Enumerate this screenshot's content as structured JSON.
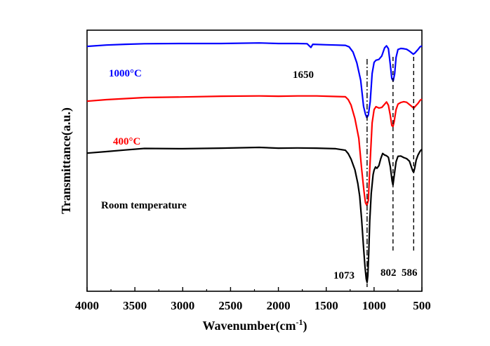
{
  "chart_data": {
    "type": "line",
    "title": "",
    "xlabel": "Wavenumber(cm",
    "xlabel_sup": "-1",
    "xlabel_close": ")",
    "ylabel": "Transmittance(a.u.)",
    "xlim": [
      4000,
      500
    ],
    "x_direction": "reversed",
    "x_ticks": [
      4000,
      3500,
      3000,
      2500,
      2000,
      1500,
      1000,
      500
    ],
    "x_tick_labels": [
      "4000",
      "3500",
      "3000",
      "2500",
      "2000",
      "1500",
      "1000",
      "500"
    ],
    "y_ticks_shown": false,
    "ylim": [
      0,
      100
    ],
    "series": [
      {
        "name": "1000°C",
        "color": "#0000ff",
        "points": [
          [
            4000,
            93.8
          ],
          [
            3800,
            94.3
          ],
          [
            3600,
            94.6
          ],
          [
            3400,
            94.8
          ],
          [
            3000,
            94.9
          ],
          [
            2600,
            94.9
          ],
          [
            2200,
            95.1
          ],
          [
            2000,
            94.9
          ],
          [
            1800,
            94.9
          ],
          [
            1700,
            94.8
          ],
          [
            1660,
            93.4
          ],
          [
            1640,
            94.6
          ],
          [
            1500,
            94.4
          ],
          [
            1400,
            94.3
          ],
          [
            1300,
            94.2
          ],
          [
            1260,
            93.6
          ],
          [
            1220,
            91.6
          ],
          [
            1180,
            87.5
          ],
          [
            1140,
            80.8
          ],
          [
            1110,
            70.8
          ],
          [
            1090,
            67.8
          ],
          [
            1075,
            66.5
          ],
          [
            1060,
            67.5
          ],
          [
            1040,
            72.7
          ],
          [
            1020,
            83.4
          ],
          [
            1000,
            87.7
          ],
          [
            980,
            88.5
          ],
          [
            950,
            88.8
          ],
          [
            920,
            90.1
          ],
          [
            890,
            93.2
          ],
          [
            870,
            94.0
          ],
          [
            850,
            92.9
          ],
          [
            830,
            86.8
          ],
          [
            815,
            81.5
          ],
          [
            800,
            80.6
          ],
          [
            785,
            83.3
          ],
          [
            770,
            89.6
          ],
          [
            750,
            92.6
          ],
          [
            720,
            93.0
          ],
          [
            690,
            92.9
          ],
          [
            660,
            92.7
          ],
          [
            630,
            92.0
          ],
          [
            600,
            91.1
          ],
          [
            590,
            90.8
          ],
          [
            575,
            91.2
          ],
          [
            560,
            91.8
          ],
          [
            540,
            92.6
          ],
          [
            520,
            93.6
          ],
          [
            500,
            94.0
          ]
        ]
      },
      {
        "name": "400°C",
        "color": "#ff0000",
        "points": [
          [
            4000,
            72.8
          ],
          [
            3800,
            73.4
          ],
          [
            3600,
            73.8
          ],
          [
            3400,
            74.2
          ],
          [
            3000,
            74.4
          ],
          [
            2600,
            74.7
          ],
          [
            2200,
            74.8
          ],
          [
            2000,
            74.7
          ],
          [
            1800,
            74.8
          ],
          [
            1600,
            74.8
          ],
          [
            1400,
            74.6
          ],
          [
            1300,
            74.5
          ],
          [
            1270,
            73.4
          ],
          [
            1240,
            71.3
          ],
          [
            1200,
            66.1
          ],
          [
            1160,
            58.6
          ],
          [
            1130,
            47.0
          ],
          [
            1105,
            38.3
          ],
          [
            1090,
            33.9
          ],
          [
            1075,
            32.9
          ],
          [
            1060,
            34.8
          ],
          [
            1045,
            46.6
          ],
          [
            1020,
            64.5
          ],
          [
            1000,
            69.6
          ],
          [
            980,
            70.7
          ],
          [
            950,
            70.2
          ],
          [
            920,
            70.4
          ],
          [
            890,
            71.6
          ],
          [
            870,
            72.5
          ],
          [
            850,
            71.2
          ],
          [
            830,
            67.3
          ],
          [
            815,
            63.5
          ],
          [
            802,
            63.1
          ],
          [
            790,
            65.0
          ],
          [
            770,
            69.6
          ],
          [
            750,
            71.7
          ],
          [
            720,
            72.3
          ],
          [
            690,
            72.6
          ],
          [
            660,
            72.4
          ],
          [
            630,
            71.5
          ],
          [
            600,
            70.6
          ],
          [
            586,
            70.1
          ],
          [
            575,
            70.6
          ],
          [
            560,
            71.2
          ],
          [
            540,
            72.0
          ],
          [
            520,
            73.1
          ],
          [
            500,
            73.6
          ]
        ]
      },
      {
        "name": "Room temperature",
        "color": "#000000",
        "points": [
          [
            4000,
            52.9
          ],
          [
            3800,
            53.5
          ],
          [
            3600,
            54.1
          ],
          [
            3400,
            54.7
          ],
          [
            3000,
            54.6
          ],
          [
            2600,
            54.8
          ],
          [
            2200,
            55.1
          ],
          [
            2000,
            54.8
          ],
          [
            1800,
            54.9
          ],
          [
            1600,
            54.8
          ],
          [
            1400,
            54.6
          ],
          [
            1300,
            54.0
          ],
          [
            1270,
            52.7
          ],
          [
            1240,
            50.6
          ],
          [
            1200,
            46.5
          ],
          [
            1170,
            41.3
          ],
          [
            1150,
            36.4
          ],
          [
            1130,
            27.6
          ],
          [
            1110,
            16.6
          ],
          [
            1095,
            9.5
          ],
          [
            1082,
            4.7
          ],
          [
            1073,
            3.4
          ],
          [
            1065,
            6.0
          ],
          [
            1055,
            15.5
          ],
          [
            1045,
            27.0
          ],
          [
            1030,
            37.4
          ],
          [
            1010,
            44.7
          ],
          [
            1000,
            46.4
          ],
          [
            985,
            47.6
          ],
          [
            970,
            47.1
          ],
          [
            950,
            48.1
          ],
          [
            930,
            50.8
          ],
          [
            910,
            52.8
          ],
          [
            890,
            52.2
          ],
          [
            870,
            51.9
          ],
          [
            850,
            51.3
          ],
          [
            830,
            47.7
          ],
          [
            812,
            42.3
          ],
          [
            802,
            40.7
          ],
          [
            790,
            44.2
          ],
          [
            770,
            49.6
          ],
          [
            750,
            51.7
          ],
          [
            720,
            51.8
          ],
          [
            690,
            51.2
          ],
          [
            660,
            50.8
          ],
          [
            630,
            49.8
          ],
          [
            610,
            47.6
          ],
          [
            595,
            46.0
          ],
          [
            586,
            45.6
          ],
          [
            575,
            47.2
          ],
          [
            560,
            50.2
          ],
          [
            540,
            52.2
          ],
          [
            520,
            53.6
          ],
          [
            500,
            54.4
          ]
        ]
      }
    ],
    "annotations": [
      {
        "text": "1000°C",
        "color": "#0000ff"
      },
      {
        "text": "400°C",
        "color": "#ff0000"
      },
      {
        "text": "Room temperature",
        "color": "#000000"
      },
      {
        "text": "1650",
        "color": "#000000"
      },
      {
        "text": "1073",
        "color": "#000000"
      },
      {
        "text": "802",
        "color": "#000000"
      },
      {
        "text": "586",
        "color": "#000000"
      }
    ],
    "reference_lines": [
      {
        "x": 1073,
        "style": "dash-dot"
      },
      {
        "x": 802,
        "style": "dashed"
      },
      {
        "x": 586,
        "style": "dashed"
      }
    ]
  }
}
